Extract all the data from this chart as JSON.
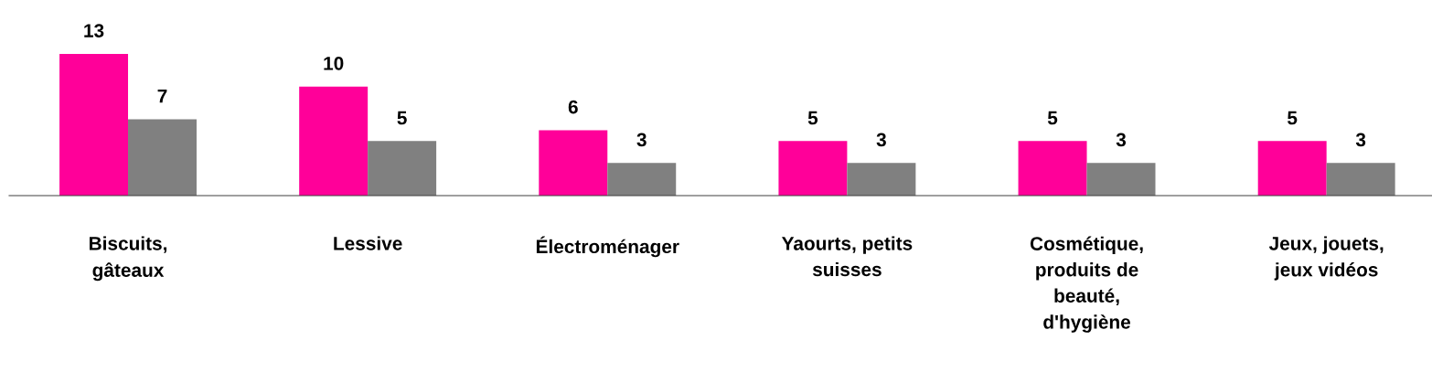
{
  "chart_data": {
    "type": "bar",
    "categories": [
      "Biscuits,\ngâteaux",
      "Lessive",
      "Électroménager",
      "Yaourts, petits\nsuisses",
      "Cosmétique,\nproduits de\nbeauté,\nd'hygiène",
      "Jeux, jouets,\njeux vidéos"
    ],
    "series": [
      {
        "color": "#ff0099",
        "values": [
          13,
          10,
          6,
          5,
          5,
          5
        ]
      },
      {
        "color": "#808080",
        "values": [
          7,
          5,
          3,
          3,
          3,
          3
        ]
      }
    ],
    "data_labels": true,
    "grid": false,
    "legend": false
  }
}
